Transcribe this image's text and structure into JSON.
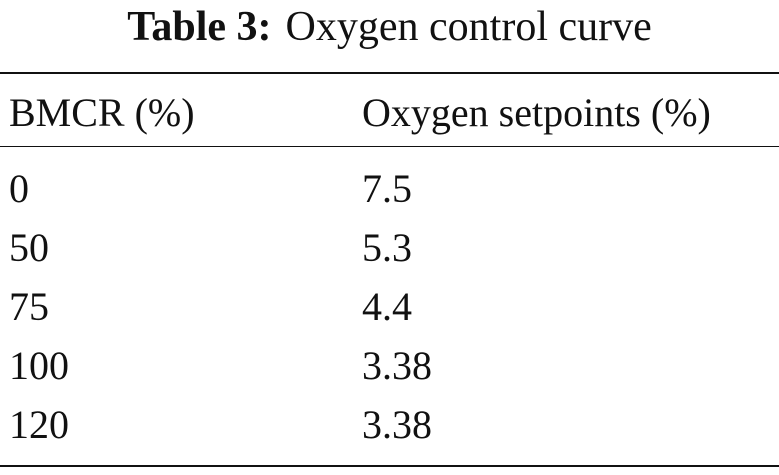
{
  "caption": {
    "label": "Table 3:",
    "text": "Oxygen control curve"
  },
  "table": {
    "headers": [
      "BMCR (%)",
      "Oxygen setpoints (%)"
    ],
    "rows": [
      [
        "0",
        "7.5"
      ],
      [
        "50",
        "5.3"
      ],
      [
        "75",
        "4.4"
      ],
      [
        "100",
        "3.38"
      ],
      [
        "120",
        "3.38"
      ]
    ]
  }
}
